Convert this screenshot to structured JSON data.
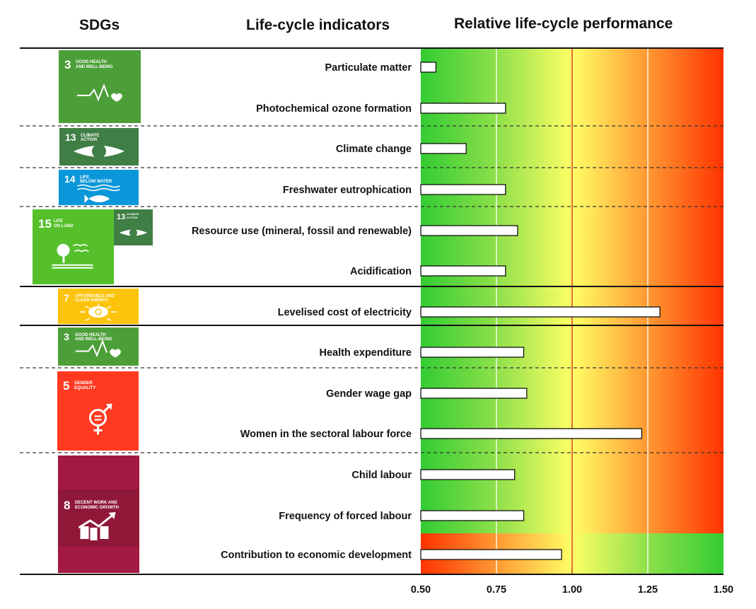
{
  "headers": {
    "sdgs": "SDGs",
    "indicators": "Life-cycle indicators",
    "performance": "Relative life-cycle performance"
  },
  "sdg_tiles": [
    {
      "number": "3",
      "title_line1": "GOOD HEALTH",
      "title_line2": "AND WELL-BEING",
      "color": "#4C9F38",
      "icon": "heartbeat-icon"
    },
    {
      "number": "13",
      "title_line1": "CLIMATE",
      "title_line2": "ACTION",
      "color": "#3F7E44",
      "icon": "eye-globe-icon"
    },
    {
      "number": "14",
      "title_line1": "LIFE",
      "title_line2": "BELOW WATER",
      "color": "#0A97D9",
      "icon": "fish-waves-icon"
    },
    {
      "number": "15",
      "title_line1": "LIFE",
      "title_line2": "ON LAND",
      "color": "#56C02B",
      "icon": "tree-birds-icon"
    },
    {
      "number": "13",
      "title_line1": "CLIMATE",
      "title_line2": "ACTION",
      "color": "#3F7E44",
      "icon": "eye-globe-icon"
    },
    {
      "number": "7",
      "title_line1": "AFFORDABLE AND",
      "title_line2": "CLEAN ENERGY",
      "color": "#FCC30B",
      "icon": "sun-power-icon"
    },
    {
      "number": "3",
      "title_line1": "GOOD HEALTH",
      "title_line2": "AND WELL-BEING",
      "color": "#4C9F38",
      "icon": "heartbeat-icon"
    },
    {
      "number": "5",
      "title_line1": "GENDER",
      "title_line2": "EQUALITY",
      "color": "#FF3A21",
      "icon": "gender-equality-icon"
    },
    {
      "number": "8",
      "title_line1": "DECENT WORK AND",
      "title_line2": "ECONOMIC GROWTH",
      "color": "#A21942",
      "icon": "growth-chart-icon"
    }
  ],
  "chart_data": {
    "type": "bar",
    "orientation": "horizontal",
    "title": "Relative life-cycle performance",
    "xlabel": "",
    "ylabel": "Life-cycle indicators",
    "xlim": [
      0.5,
      1.5
    ],
    "baseline": 0.5,
    "reference_line": 1.0,
    "grid": true,
    "x_ticks": [
      "0.50",
      "0.75",
      "1.00",
      "1.25",
      "1.50"
    ],
    "background_scale": "green (better) to red (worse); reversed for last indicator",
    "categories": [
      "Particulate matter",
      "Photochemical ozone formation",
      "Climate change",
      "Freshwater eutrophication",
      "Resource use (mineral, fossil and renewable)",
      "Acidification",
      "Levelised cost of electricity",
      "Health expenditure",
      "Gender wage gap",
      "Women in the sectoral labour force",
      "Child labour",
      "Frequency of forced labour",
      "Contribution to economic development"
    ],
    "values": [
      0.55,
      0.78,
      0.65,
      0.78,
      0.82,
      0.78,
      1.29,
      0.84,
      0.85,
      1.23,
      0.81,
      0.84,
      0.965
    ],
    "colors": {
      "good": "#33CC33",
      "neutral": "#FFFF66",
      "bad": "#FF3300",
      "reference_line": "#CC2222",
      "bar_fill": "#FFFFFF"
    }
  }
}
